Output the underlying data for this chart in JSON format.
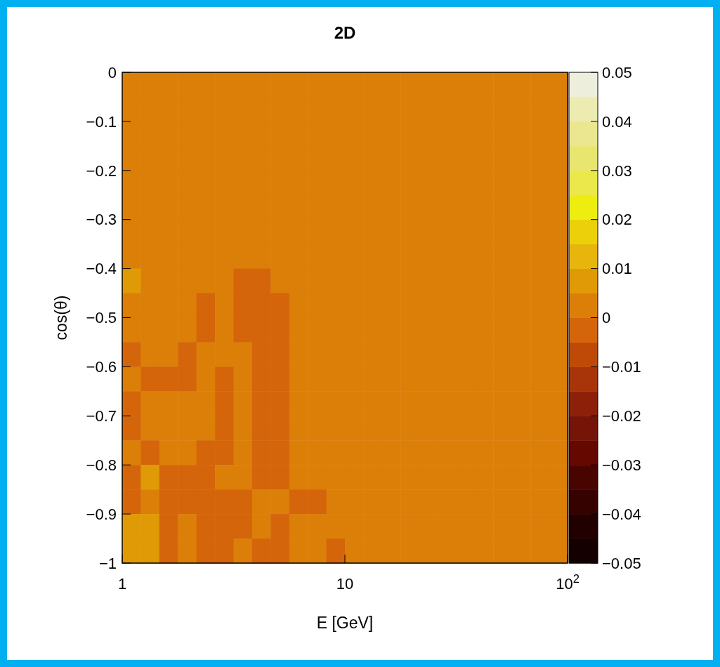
{
  "chart_data": {
    "type": "heatmap",
    "title": "2D",
    "xlabel": "E [GeV]",
    "ylabel": "cos(θ)",
    "log": "x",
    "xlim": [
      1,
      100
    ],
    "xticks": [
      1,
      10,
      {
        "value": 100,
        "label": "10$^{2}$"
      }
    ],
    "ylim": [
      -1,
      0
    ],
    "yticks": [
      {
        "value": -1,
        "label": "−1"
      },
      {
        "value": -0.9,
        "label": "−0.9"
      },
      {
        "value": -0.8,
        "label": "−0.8"
      },
      {
        "value": -0.7,
        "label": "−0.7"
      },
      {
        "value": -0.6,
        "label": "−0.6"
      },
      {
        "value": -0.5,
        "label": "−0.5"
      },
      {
        "value": -0.4,
        "label": "−0.4"
      },
      {
        "value": -0.3,
        "label": "−0.3"
      },
      {
        "value": -0.2,
        "label": "−0.2"
      },
      {
        "value": -0.1,
        "label": "−0.1"
      },
      0
    ],
    "clim": [
      -0.05,
      0.05
    ],
    "cticks": [
      {
        "value": -0.05,
        "label": "−0.05"
      },
      {
        "value": -0.04,
        "label": "−0.04"
      },
      {
        "value": -0.03,
        "label": "−0.03"
      },
      {
        "value": -0.02,
        "label": "−0.02"
      },
      {
        "value": -0.01,
        "label": "−0.01"
      },
      0,
      0.01,
      0.02,
      0.03,
      0.04,
      0.05
    ],
    "cells": [
      [
        0.0025,
        0.0025,
        0.0025,
        0.0025,
        0.0025,
        0.0025,
        0.0025,
        0.0025,
        0.0025,
        0.0025,
        0.0025,
        0.0025,
        0.0025,
        0.0025,
        0.0025,
        0.0025,
        0.0025,
        0.0025,
        0.0025,
        0.0025,
        0.0025,
        0.0025,
        0.0025,
        0.0025
      ],
      [
        0.0025,
        0.0025,
        0.0025,
        0.0025,
        0.0025,
        0.0025,
        0.0025,
        0.0025,
        0.0025,
        0.0025,
        0.0025,
        0.0025,
        0.0025,
        0.0025,
        0.0025,
        0.0025,
        0.0025,
        0.0025,
        0.0025,
        0.0025,
        0.0025,
        0.0025,
        0.0025,
        0.0025
      ],
      [
        0.0025,
        0.0025,
        0.0025,
        0.0025,
        0.0025,
        0.0025,
        0.0025,
        0.0025,
        0.0025,
        0.0025,
        0.0025,
        0.0025,
        0.0025,
        0.0025,
        0.0025,
        0.0025,
        0.0025,
        0.0025,
        0.0025,
        0.0025,
        0.0025,
        0.0025,
        0.0025,
        0.0025
      ],
      [
        0.0025,
        0.0025,
        0.0025,
        0.0025,
        0.0025,
        0.0025,
        0.0025,
        0.0025,
        0.0025,
        0.0025,
        0.0025,
        0.0025,
        0.0025,
        0.0025,
        0.0025,
        0.0025,
        0.0025,
        0.0025,
        0.0025,
        0.0025,
        0.0025,
        0.0025,
        0.0025,
        0.0025
      ],
      [
        0.0025,
        0.0025,
        0.0025,
        0.0025,
        0.0025,
        0.0025,
        0.0025,
        0.0025,
        0.0025,
        0.0025,
        0.0025,
        0.0025,
        0.0025,
        0.0025,
        0.0025,
        0.0025,
        0.0025,
        0.0025,
        0.0025,
        0.0025,
        0.0025,
        0.0025,
        0.0025,
        0.0025
      ],
      [
        0.0025,
        0.0025,
        0.0025,
        0.0025,
        0.0025,
        0.0025,
        0.0025,
        0.0025,
        0.0025,
        0.0025,
        0.0025,
        0.0025,
        0.0025,
        0.0025,
        0.0025,
        0.0025,
        0.0025,
        0.0025,
        0.0025,
        0.0025,
        0.0025,
        0.0025,
        0.0025,
        0.0025
      ],
      [
        0.0025,
        0.0025,
        0.0025,
        0.0025,
        0.0025,
        0.0025,
        0.0025,
        0.0025,
        0.0025,
        0.0025,
        0.0025,
        0.0025,
        0.0025,
        0.0025,
        0.0025,
        0.0025,
        0.0025,
        0.0025,
        0.0025,
        0.0025,
        0.0025,
        0.0025,
        0.0025,
        0.0025
      ],
      [
        0.0025,
        0.0025,
        0.0025,
        0.0025,
        0.0025,
        0.0025,
        0.0025,
        0.0025,
        0.0025,
        0.0025,
        0.0025,
        0.0025,
        0.0025,
        0.0025,
        0.0025,
        0.0025,
        0.0025,
        0.0025,
        0.0025,
        0.0025,
        0.0025,
        0.0025,
        0.0025,
        0.0025
      ],
      [
        0.0075,
        0.0025,
        0.0025,
        0.0025,
        0.0025,
        0.0025,
        -0.0025,
        -0.0025,
        0.0025,
        0.0025,
        0.0025,
        0.0025,
        0.0025,
        0.0025,
        0.0025,
        0.0025,
        0.0025,
        0.0025,
        0.0025,
        0.0025,
        0.0025,
        0.0025,
        0.0025,
        0.0025
      ],
      [
        0.0025,
        0.0025,
        0.0025,
        0.0025,
        -0.0025,
        0.0025,
        -0.0025,
        -0.0025,
        -0.0025,
        0.0025,
        0.0025,
        0.0025,
        0.0025,
        0.0025,
        0.0025,
        0.0025,
        0.0025,
        0.0025,
        0.0025,
        0.0025,
        0.0025,
        0.0025,
        0.0025,
        0.0025
      ],
      [
        0.0025,
        0.0025,
        0.0025,
        0.0025,
        -0.0025,
        0.0025,
        -0.0025,
        -0.0025,
        -0.0025,
        0.0025,
        0.0025,
        0.0025,
        0.0025,
        0.0025,
        0.0025,
        0.0025,
        0.0025,
        0.0025,
        0.0025,
        0.0025,
        0.0025,
        0.0025,
        0.0025,
        0.0025
      ],
      [
        -0.0025,
        0.0025,
        0.0025,
        -0.0025,
        0.0025,
        0.0025,
        0.0025,
        -0.0025,
        -0.0025,
        0.0025,
        0.0025,
        0.0025,
        0.0025,
        0.0025,
        0.0025,
        0.0025,
        0.0025,
        0.0025,
        0.0025,
        0.0025,
        0.0025,
        0.0025,
        0.0025,
        0.0025
      ],
      [
        0.0025,
        -0.0025,
        -0.0025,
        -0.0025,
        0.0025,
        -0.0025,
        0.0025,
        -0.0025,
        -0.0025,
        0.0025,
        0.0025,
        0.0025,
        0.0025,
        0.0025,
        0.0025,
        0.0025,
        0.0025,
        0.0025,
        0.0025,
        0.0025,
        0.0025,
        0.0025,
        0.0025,
        0.0025
      ],
      [
        -0.0025,
        0.0025,
        0.0025,
        0.0025,
        0.0025,
        -0.0025,
        0.0025,
        -0.0025,
        -0.0025,
        0.0025,
        0.0025,
        0.0025,
        0.0025,
        0.0025,
        0.0025,
        0.0025,
        0.0025,
        0.0025,
        0.0025,
        0.0025,
        0.0025,
        0.0025,
        0.0025,
        0.0025
      ],
      [
        -0.0025,
        0.0025,
        0.0025,
        0.0025,
        0.0025,
        -0.0025,
        0.0025,
        -0.0025,
        -0.0025,
        0.0025,
        0.0025,
        0.0025,
        0.0025,
        0.0025,
        0.0025,
        0.0025,
        0.0025,
        0.0025,
        0.0025,
        0.0025,
        0.0025,
        0.0025,
        0.0025,
        0.0025
      ],
      [
        0.0025,
        -0.0025,
        0.0025,
        0.0025,
        -0.0025,
        -0.0025,
        0.0025,
        -0.0025,
        -0.0025,
        0.0025,
        0.0025,
        0.0025,
        0.0025,
        0.0025,
        0.0025,
        0.0025,
        0.0025,
        0.0025,
        0.0025,
        0.0025,
        0.0025,
        0.0025,
        0.0025,
        0.0025
      ],
      [
        -0.0025,
        0.0075,
        -0.0025,
        -0.0025,
        -0.0025,
        0.0025,
        0.0025,
        -0.0025,
        -0.0025,
        0.0025,
        0.0025,
        0.0025,
        0.0025,
        0.0025,
        0.0025,
        0.0025,
        0.0025,
        0.0025,
        0.0025,
        0.0025,
        0.0025,
        0.0025,
        0.0025,
        0.0025
      ],
      [
        -0.0025,
        0.0025,
        -0.0025,
        -0.0025,
        -0.0025,
        -0.0025,
        -0.0025,
        0.0025,
        0.0025,
        -0.0025,
        -0.0025,
        0.0025,
        0.0025,
        0.0025,
        0.0025,
        0.0025,
        0.0025,
        0.0025,
        0.0025,
        0.0025,
        0.0025,
        0.0025,
        0.0025,
        0.0025
      ],
      [
        0.0075,
        0.0075,
        -0.0025,
        0.0025,
        -0.0025,
        -0.0025,
        -0.0025,
        0.0025,
        -0.0025,
        0.0025,
        0.0025,
        0.0025,
        0.0025,
        0.0025,
        0.0025,
        0.0025,
        0.0025,
        0.0025,
        0.0025,
        0.0025,
        0.0025,
        0.0025,
        0.0025,
        0.0025
      ],
      [
        0.0075,
        0.0075,
        -0.0025,
        0.0025,
        -0.0025,
        -0.0025,
        0.0025,
        -0.0025,
        -0.0025,
        0.0025,
        0.0025,
        -0.0025,
        0.0025,
        0.0025,
        0.0025,
        0.0025,
        0.0025,
        0.0025,
        0.0025,
        0.0025,
        0.0025,
        0.0025,
        0.0025,
        0.0025
      ]
    ]
  }
}
